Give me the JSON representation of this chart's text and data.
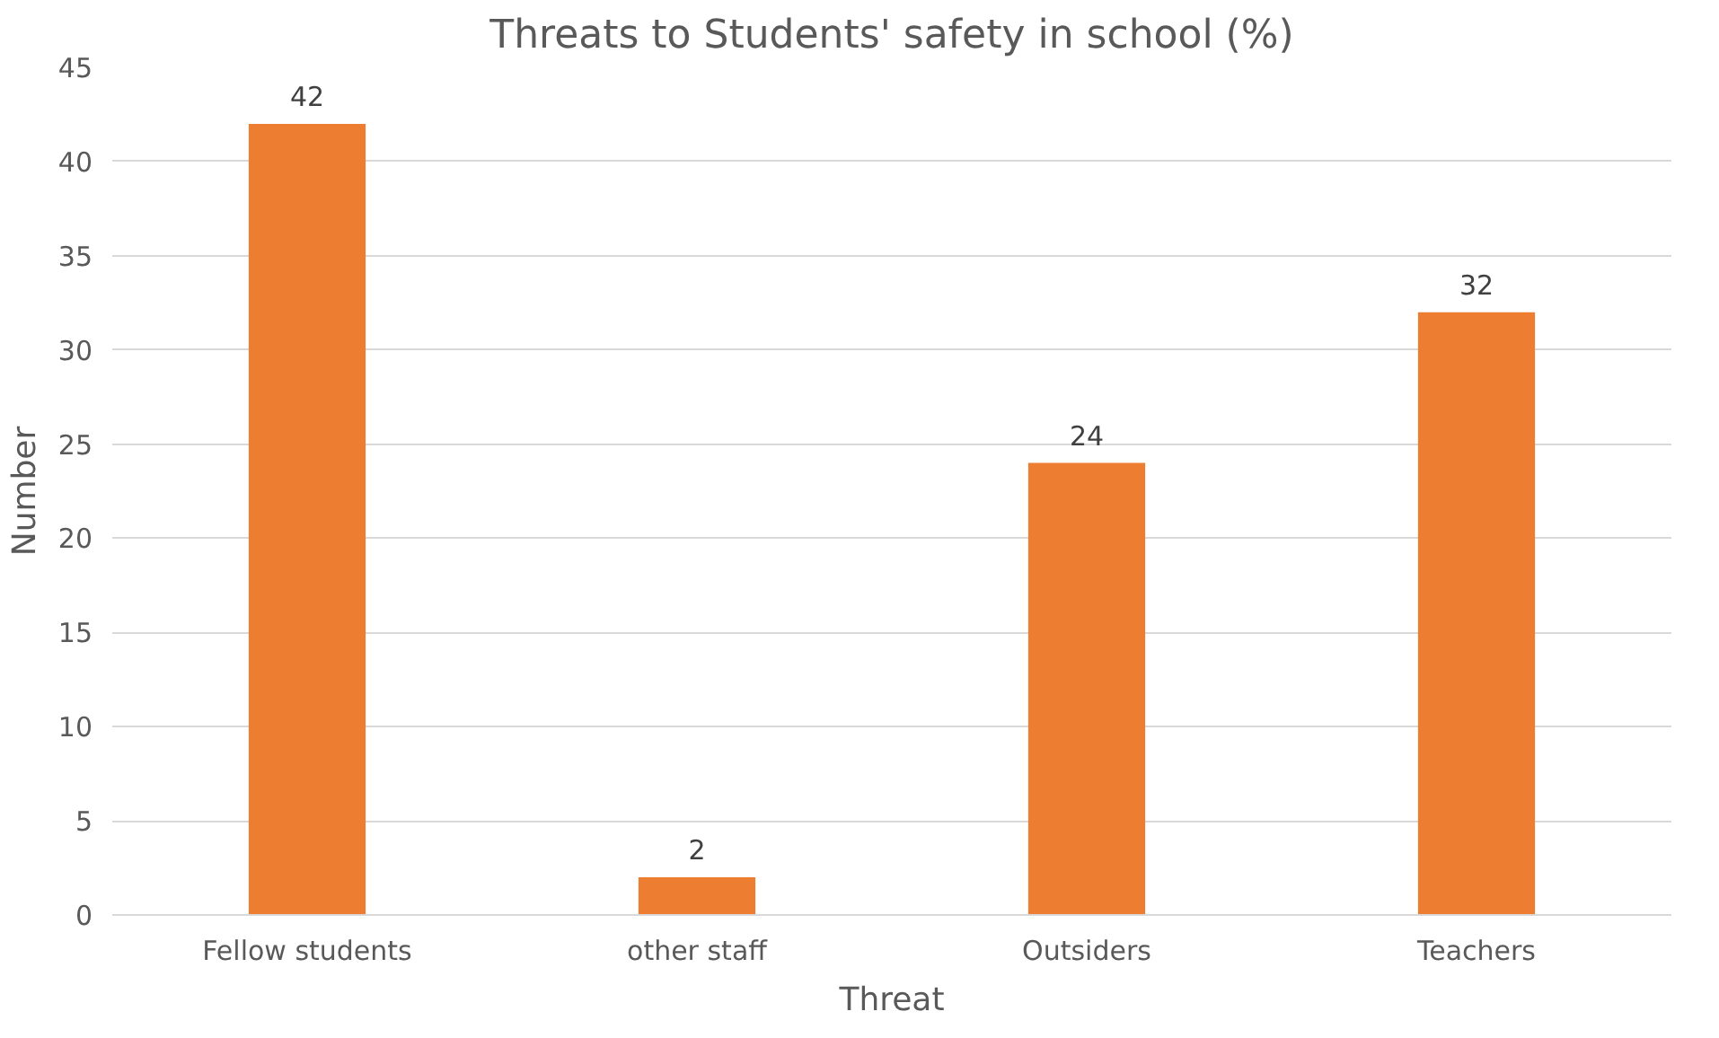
{
  "chart_data": {
    "type": "bar",
    "title": "Threats to Students' safety in school (%)",
    "xlabel": "Threat",
    "ylabel": "Number",
    "categories": [
      "Fellow students",
      "other staff",
      "Outsiders",
      "Teachers"
    ],
    "values": [
      42,
      2,
      24,
      32
    ],
    "color": "#ed7d31",
    "ylim": [
      0,
      45
    ],
    "yticks": [
      0,
      5,
      10,
      15,
      20,
      25,
      30,
      35,
      40,
      45
    ],
    "grid": "y",
    "data_labels": true
  }
}
